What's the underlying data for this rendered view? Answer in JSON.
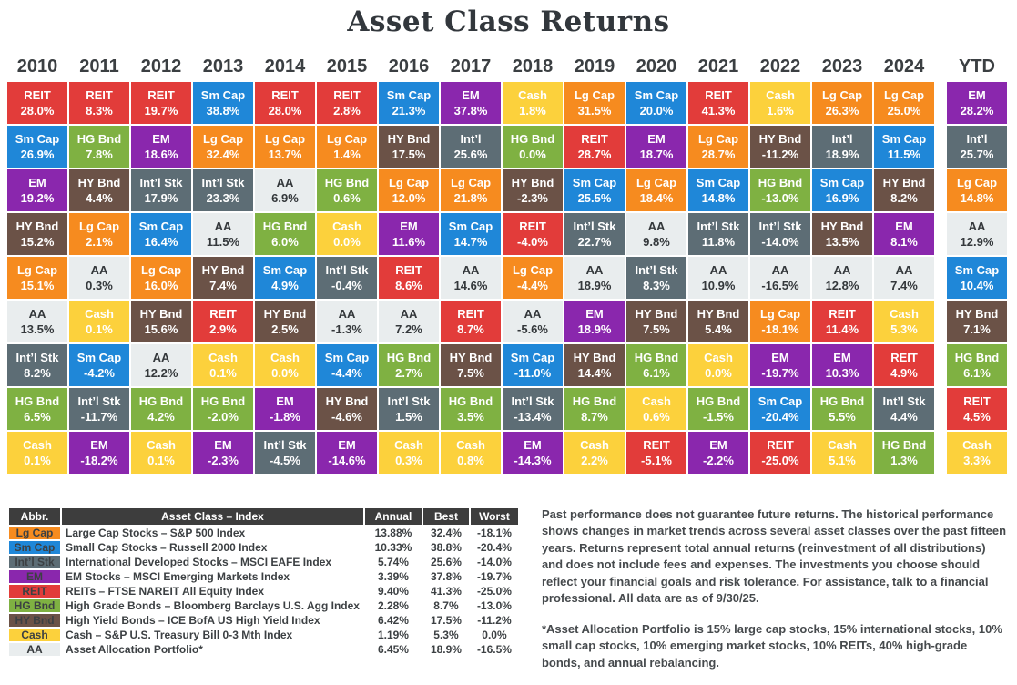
{
  "title": "Asset Class Returns",
  "asset_colors": {
    "Lg Cap": "#f68b1f",
    "Sm Cap": "#1f87d8",
    "Int’l Stk": "#5d6d75",
    "Int’l": "#5d6d75",
    "EM": "#8a27ad",
    "REIT": "#e23c3a",
    "HG Bnd": "#7fb142",
    "HY Bnd": "#6b5247",
    "Cash": "#fcd13c",
    "AA": "#e9edee"
  },
  "dark_text_assets": [
    "AA"
  ],
  "chart_data": {
    "type": "heatmap",
    "title": "Asset Class Returns",
    "description": "Ranked annual total returns (%) by asset class, best to worst top-to-bottom, 2010-2024 plus YTD",
    "legend_position": "bottom-left table",
    "columns": [
      {
        "label": "2010",
        "cells": [
          {
            "abbr": "REIT",
            "value": 28.0
          },
          {
            "abbr": "Sm Cap",
            "value": 26.9
          },
          {
            "abbr": "EM",
            "value": 19.2
          },
          {
            "abbr": "HY Bnd",
            "value": 15.2
          },
          {
            "abbr": "Lg Cap",
            "value": 15.1
          },
          {
            "abbr": "AA",
            "value": 13.5
          },
          {
            "abbr": "Int’l Stk",
            "value": 8.2
          },
          {
            "abbr": "HG Bnd",
            "value": 6.5
          },
          {
            "abbr": "Cash",
            "value": 0.1
          }
        ]
      },
      {
        "label": "2011",
        "cells": [
          {
            "abbr": "REIT",
            "value": 8.3
          },
          {
            "abbr": "HG Bnd",
            "value": 7.8
          },
          {
            "abbr": "HY Bnd",
            "value": 4.4
          },
          {
            "abbr": "Lg Cap",
            "value": 2.1
          },
          {
            "abbr": "AA",
            "value": 0.3
          },
          {
            "abbr": "Cash",
            "value": 0.1
          },
          {
            "abbr": "Sm Cap",
            "value": -4.2
          },
          {
            "abbr": "Int’l Stk",
            "value": -11.7
          },
          {
            "abbr": "EM",
            "value": -18.2
          }
        ]
      },
      {
        "label": "2012",
        "cells": [
          {
            "abbr": "REIT",
            "value": 19.7
          },
          {
            "abbr": "EM",
            "value": 18.6
          },
          {
            "abbr": "Int’l Stk",
            "value": 17.9
          },
          {
            "abbr": "Sm Cap",
            "value": 16.4
          },
          {
            "abbr": "Lg Cap",
            "value": 16.0
          },
          {
            "abbr": "HY Bnd",
            "value": 15.6
          },
          {
            "abbr": "AA",
            "value": 12.2
          },
          {
            "abbr": "HG Bnd",
            "value": 4.2
          },
          {
            "abbr": "Cash",
            "value": 0.1
          }
        ]
      },
      {
        "label": "2013",
        "cells": [
          {
            "abbr": "Sm Cap",
            "value": 38.8
          },
          {
            "abbr": "Lg Cap",
            "value": 32.4
          },
          {
            "abbr": "Int’l Stk",
            "value": 23.3
          },
          {
            "abbr": "AA",
            "value": 11.5
          },
          {
            "abbr": "HY Bnd",
            "value": 7.4
          },
          {
            "abbr": "REIT",
            "value": 2.9
          },
          {
            "abbr": "Cash",
            "value": 0.1
          },
          {
            "abbr": "HG Bnd",
            "value": -2.0
          },
          {
            "abbr": "EM",
            "value": -2.3
          }
        ]
      },
      {
        "label": "2014",
        "cells": [
          {
            "abbr": "REIT",
            "value": 28.0
          },
          {
            "abbr": "Lg Cap",
            "value": 13.7
          },
          {
            "abbr": "AA",
            "value": 6.9
          },
          {
            "abbr": "HG Bnd",
            "value": 6.0
          },
          {
            "abbr": "Sm Cap",
            "value": 4.9
          },
          {
            "abbr": "HY Bnd",
            "value": 2.5
          },
          {
            "abbr": "Cash",
            "value": 0.0
          },
          {
            "abbr": "EM",
            "value": -1.8
          },
          {
            "abbr": "Int’l Stk",
            "value": -4.5
          }
        ]
      },
      {
        "label": "2015",
        "cells": [
          {
            "abbr": "REIT",
            "value": 2.8
          },
          {
            "abbr": "Lg Cap",
            "value": 1.4
          },
          {
            "abbr": "HG Bnd",
            "value": 0.6
          },
          {
            "abbr": "Cash",
            "value": 0.0
          },
          {
            "abbr": "Int’l Stk",
            "value": -0.4
          },
          {
            "abbr": "AA",
            "value": -1.3
          },
          {
            "abbr": "Sm Cap",
            "value": -4.4
          },
          {
            "abbr": "HY Bnd",
            "value": -4.6
          },
          {
            "abbr": "EM",
            "value": -14.6
          }
        ]
      },
      {
        "label": "2016",
        "cells": [
          {
            "abbr": "Sm Cap",
            "value": 21.3
          },
          {
            "abbr": "HY Bnd",
            "value": 17.5
          },
          {
            "abbr": "Lg Cap",
            "value": 12.0
          },
          {
            "abbr": "EM",
            "value": 11.6
          },
          {
            "abbr": "REIT",
            "value": 8.6
          },
          {
            "abbr": "AA",
            "value": 7.2
          },
          {
            "abbr": "HG Bnd",
            "value": 2.7
          },
          {
            "abbr": "Int’l Stk",
            "value": 1.5
          },
          {
            "abbr": "Cash",
            "value": 0.3
          }
        ]
      },
      {
        "label": "2017",
        "cells": [
          {
            "abbr": "EM",
            "value": 37.8
          },
          {
            "abbr": "Int’l",
            "value": 25.6
          },
          {
            "abbr": "Lg Cap",
            "value": 21.8
          },
          {
            "abbr": "Sm Cap",
            "value": 14.7
          },
          {
            "abbr": "AA",
            "value": 14.6
          },
          {
            "abbr": "REIT",
            "value": 8.7
          },
          {
            "abbr": "HY Bnd",
            "value": 7.5
          },
          {
            "abbr": "HG Bnd",
            "value": 3.5
          },
          {
            "abbr": "Cash",
            "value": 0.8
          }
        ]
      },
      {
        "label": "2018",
        "cells": [
          {
            "abbr": "Cash",
            "value": 1.8
          },
          {
            "abbr": "HG Bnd",
            "value": 0.0
          },
          {
            "abbr": "HY Bnd",
            "value": -2.3
          },
          {
            "abbr": "REIT",
            "value": -4.0
          },
          {
            "abbr": "Lg Cap",
            "value": -4.4
          },
          {
            "abbr": "AA",
            "value": -5.6
          },
          {
            "abbr": "Sm Cap",
            "value": -11.0
          },
          {
            "abbr": "Int’l Stk",
            "value": -13.4
          },
          {
            "abbr": "EM",
            "value": -14.3
          }
        ]
      },
      {
        "label": "2019",
        "cells": [
          {
            "abbr": "Lg Cap",
            "value": 31.5
          },
          {
            "abbr": "REIT",
            "value": 28.7
          },
          {
            "abbr": "Sm Cap",
            "value": 25.5
          },
          {
            "abbr": "Int’l Stk",
            "value": 22.7
          },
          {
            "abbr": "AA",
            "value": 18.9
          },
          {
            "abbr": "EM",
            "value": 18.9
          },
          {
            "abbr": "HY Bnd",
            "value": 14.4
          },
          {
            "abbr": "HG Bnd",
            "value": 8.7
          },
          {
            "abbr": "Cash",
            "value": 2.2
          }
        ]
      },
      {
        "label": "2020",
        "cells": [
          {
            "abbr": "Sm Cap",
            "value": 20.0
          },
          {
            "abbr": "EM",
            "value": 18.7
          },
          {
            "abbr": "Lg Cap",
            "value": 18.4
          },
          {
            "abbr": "AA",
            "value": 9.8
          },
          {
            "abbr": "Int’l Stk",
            "value": 8.3
          },
          {
            "abbr": "HY Bnd",
            "value": 7.5
          },
          {
            "abbr": "HG Bnd",
            "value": 6.1
          },
          {
            "abbr": "Cash",
            "value": 0.6
          },
          {
            "abbr": "REIT",
            "value": -5.1
          }
        ]
      },
      {
        "label": "2021",
        "cells": [
          {
            "abbr": "REIT",
            "value": 41.3
          },
          {
            "abbr": "Lg Cap",
            "value": 28.7
          },
          {
            "abbr": "Sm Cap",
            "value": 14.8
          },
          {
            "abbr": "Int’l Stk",
            "value": 11.8
          },
          {
            "abbr": "AA",
            "value": 10.9
          },
          {
            "abbr": "HY Bnd",
            "value": 5.4
          },
          {
            "abbr": "Cash",
            "value": 0.0
          },
          {
            "abbr": "HG Bnd",
            "value": -1.5
          },
          {
            "abbr": "EM",
            "value": -2.2
          }
        ]
      },
      {
        "label": "2022",
        "cells": [
          {
            "abbr": "Cash",
            "value": 1.6
          },
          {
            "abbr": "HY Bnd",
            "value": -11.2
          },
          {
            "abbr": "HG Bnd",
            "value": -13.0
          },
          {
            "abbr": "Int’l Stk",
            "value": -14.0
          },
          {
            "abbr": "AA",
            "value": -16.5
          },
          {
            "abbr": "Lg Cap",
            "value": -18.1
          },
          {
            "abbr": "EM",
            "value": -19.7
          },
          {
            "abbr": "Sm Cap",
            "value": -20.4
          },
          {
            "abbr": "REIT",
            "value": -25.0
          }
        ]
      },
      {
        "label": "2023",
        "cells": [
          {
            "abbr": "Lg Cap",
            "value": 26.3
          },
          {
            "abbr": "Int’l",
            "value": 18.9
          },
          {
            "abbr": "Sm Cap",
            "value": 16.9
          },
          {
            "abbr": "HY Bnd",
            "value": 13.5
          },
          {
            "abbr": "AA",
            "value": 12.8
          },
          {
            "abbr": "REIT",
            "value": 11.4
          },
          {
            "abbr": "EM",
            "value": 10.3
          },
          {
            "abbr": "HG Bnd",
            "value": 5.5
          },
          {
            "abbr": "Cash",
            "value": 5.1
          }
        ]
      },
      {
        "label": "2024",
        "cells": [
          {
            "abbr": "Lg Cap",
            "value": 25.0
          },
          {
            "abbr": "Sm Cap",
            "value": 11.5
          },
          {
            "abbr": "HY Bnd",
            "value": 8.2
          },
          {
            "abbr": "EM",
            "value": 8.1
          },
          {
            "abbr": "AA",
            "value": 7.4
          },
          {
            "abbr": "Cash",
            "value": 5.3
          },
          {
            "abbr": "REIT",
            "value": 4.9
          },
          {
            "abbr": "Int’l Stk",
            "value": 4.4
          },
          {
            "abbr": "HG Bnd",
            "value": 1.3
          }
        ]
      },
      {
        "label": "YTD",
        "cells": [
          {
            "abbr": "EM",
            "value": 28.2
          },
          {
            "abbr": "Int’l",
            "value": 25.7
          },
          {
            "abbr": "Lg Cap",
            "value": 14.8
          },
          {
            "abbr": "AA",
            "value": 12.9
          },
          {
            "abbr": "Sm Cap",
            "value": 10.4
          },
          {
            "abbr": "HY Bnd",
            "value": 7.1
          },
          {
            "abbr": "HG Bnd",
            "value": 6.1
          },
          {
            "abbr": "REIT",
            "value": 4.5
          },
          {
            "abbr": "Cash",
            "value": 3.3
          }
        ]
      }
    ]
  },
  "legend_table": {
    "headers": [
      "Abbr.",
      "Asset Class – Index",
      "Annual",
      "Best",
      "Worst"
    ],
    "rows": [
      {
        "abbr": "Lg Cap",
        "name": "Large Cap Stocks – S&P 500 Index",
        "annual": "13.88%",
        "best": "32.4%",
        "worst": "-18.1%"
      },
      {
        "abbr": "Sm Cap",
        "name": "Small Cap Stocks – Russell 2000 Index",
        "annual": "10.33%",
        "best": "38.8%",
        "worst": "-20.4%"
      },
      {
        "abbr": "Int’l Stk",
        "name": "International Developed Stocks – MSCI EAFE Index",
        "annual": "5.74%",
        "best": "25.6%",
        "worst": "-14.0%"
      },
      {
        "abbr": "EM",
        "name": "EM Stocks – MSCI Emerging Markets Index",
        "annual": "3.39%",
        "best": "37.8%",
        "worst": "-19.7%"
      },
      {
        "abbr": "REIT",
        "name": "REITs – FTSE NAREIT All Equity Index",
        "annual": "9.40%",
        "best": "41.3%",
        "worst": "-25.0%"
      },
      {
        "abbr": "HG Bnd",
        "name": "High Grade Bonds – Bloomberg Barclays U.S. Agg Index",
        "annual": "2.28%",
        "best": "8.7%",
        "worst": "-13.0%"
      },
      {
        "abbr": "HY Bnd",
        "name": "High Yield Bonds – ICE BofA US High Yield Index",
        "annual": "6.42%",
        "best": "17.5%",
        "worst": "-11.2%"
      },
      {
        "abbr": "Cash",
        "name": "Cash – S&P U.S. Treasury Bill 0-3 Mth Index",
        "annual": "1.19%",
        "best": "5.3%",
        "worst": "0.0%"
      },
      {
        "abbr": "AA",
        "name": "Asset Allocation Portfolio*",
        "annual": "6.45%",
        "best": "18.9%",
        "worst": "-16.5%"
      }
    ]
  },
  "notes": {
    "p1": "Past performance does not guarantee future returns. The historical performance shows changes in market trends across several asset classes over the past fifteen years. Returns represent total annual returns (reinvestment of all distributions) and does not include fees and expenses. The investments you choose should reflect your financial goals and risk tolerance. For assistance, talk to a financial professional. All data are as of 9/30/25.",
    "p2": "*Asset Allocation Portfolio is 15% large cap stocks, 15% international stocks, 10% small cap stocks, 10% emerging market stocks, 10% REITs, 40% high-grade bonds, and annual rebalancing."
  }
}
